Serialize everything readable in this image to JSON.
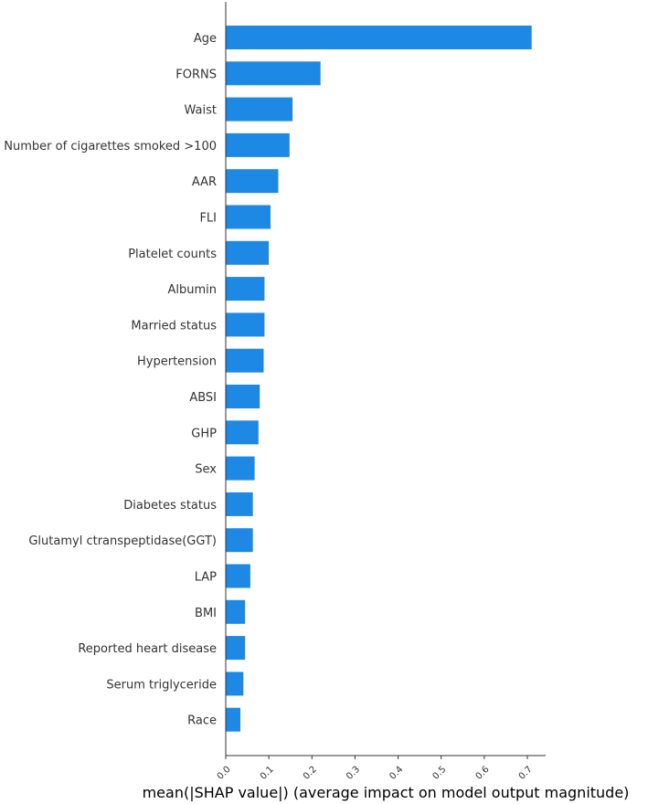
{
  "chart_data": {
    "type": "bar",
    "orientation": "horizontal",
    "categories": [
      "Age",
      "FORNS",
      "Waist",
      "Number of cigarettes smoked >100",
      "AAR",
      "FLI",
      "Platelet counts",
      "Albumin",
      "Married status",
      "Hypertension",
      "ABSI",
      "GHP",
      "Sex",
      "Diabetes status",
      "Glutamyl ctranspeptidase(GGT)",
      "LAP",
      "BMI",
      "Reported heart disease",
      "Serum triglyceride",
      "Race"
    ],
    "values": [
      0.71,
      0.22,
      0.155,
      0.148,
      0.122,
      0.104,
      0.1,
      0.09,
      0.09,
      0.088,
      0.079,
      0.076,
      0.067,
      0.063,
      0.063,
      0.057,
      0.045,
      0.045,
      0.041,
      0.034
    ],
    "xlabel": "mean(|SHAP value|) (average impact on model output magnitude)",
    "ylabel": "",
    "title": "",
    "xlim": [
      0,
      0.75
    ],
    "xticks": [
      0.0,
      0.1,
      0.2,
      0.3,
      0.4,
      0.5,
      0.6,
      0.7
    ],
    "xtick_labels": [
      "0.0",
      "0.1",
      "0.2",
      "0.3",
      "0.4",
      "0.5",
      "0.6",
      "0.7"
    ],
    "grid": false,
    "bar_color": "#1e88e5"
  }
}
